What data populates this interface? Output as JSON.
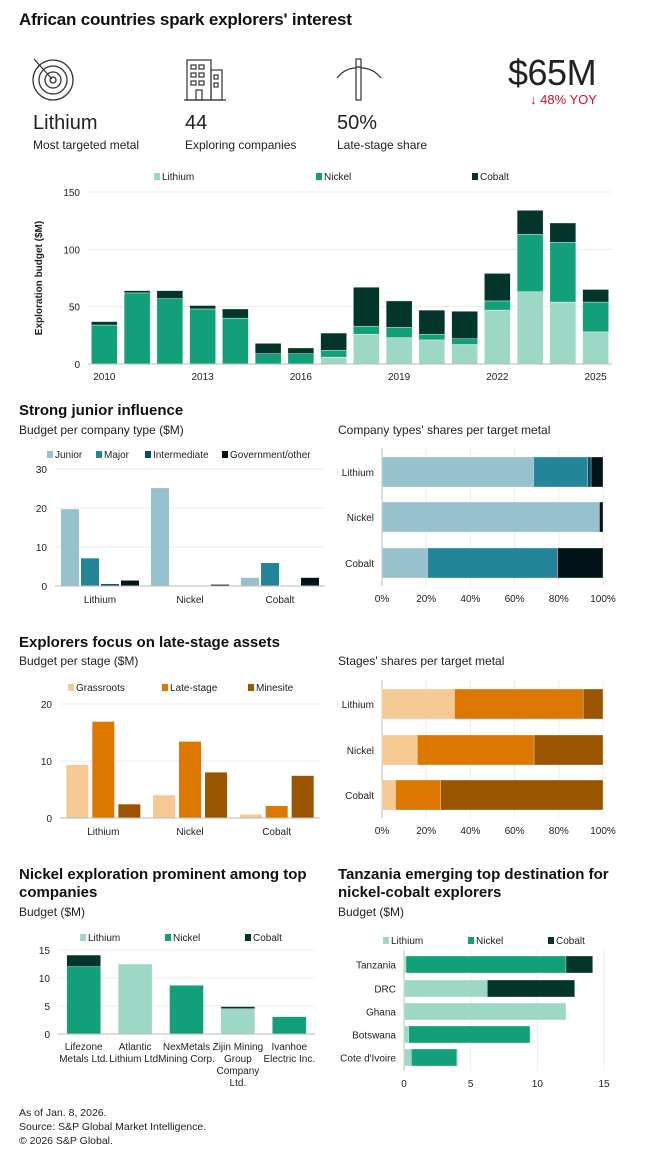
{
  "title": "African countries spark explorers' interest",
  "kpis": [
    {
      "icon": "target-icon",
      "value": "Lithium",
      "label": "Most targeted metal"
    },
    {
      "icon": "building-icon",
      "value": "44",
      "label": "Exploring companies"
    },
    {
      "icon": "pickaxe-icon",
      "value": "50%",
      "label": "Late-stage share"
    }
  ],
  "headline": {
    "value": "$65M",
    "change": "↓ 48% YOY",
    "change_color": "#c8102e"
  },
  "colors": {
    "lithium": "#9dd7c6",
    "nickel": "#12a07a",
    "cobalt": "#04352a",
    "junior": "#96c1cd",
    "major": "#24849a",
    "intermediate": "#0b4f5c",
    "government": "#031419",
    "grassroots": "#f6c993",
    "late_stage": "#dc7700",
    "minesite": "#9b5500"
  },
  "sections": {
    "junior": {
      "heading": "Strong junior influence",
      "left_sub": "Budget per company type ($M)",
      "right_sub": "Company types' shares per target metal"
    },
    "stage": {
      "heading": "Explorers focus on late-stage assets",
      "left_sub": "Budget per stage ($M)",
      "right_sub": "Stages' shares per target metal"
    },
    "companies": {
      "heading": "Nickel exploration prominent among top companies",
      "sub": "Budget ($M)"
    },
    "countries": {
      "heading": "Tanzania emerging top destination for nickel-cobalt explorers",
      "sub": "Budget ($M)"
    }
  },
  "chart_data": [
    {
      "id": "annual",
      "type": "bar",
      "stacked": true,
      "ylabel": "Exploration budget ($M)",
      "ylim": [
        0,
        150
      ],
      "yticks": [
        0,
        50,
        100,
        150
      ],
      "grid": true,
      "legend": "top",
      "categories": [
        "2010",
        "2011",
        "2012",
        "2013",
        "2014",
        "2015",
        "2016",
        "2017",
        "2018",
        "2019",
        "2020",
        "2021",
        "2022",
        "2023",
        "2024",
        "2025"
      ],
      "xtick_labels": [
        "2010",
        "2013",
        "2016",
        "2019",
        "2022",
        "2025"
      ],
      "series": [
        {
          "name": "Lithium",
          "color": "#9dd7c6",
          "values": [
            0,
            0,
            0,
            0,
            0,
            0,
            0,
            6,
            26,
            23,
            21,
            17,
            47,
            63,
            54,
            28
          ]
        },
        {
          "name": "Nickel",
          "color": "#12a07a",
          "values": [
            34,
            62,
            57,
            48,
            40,
            9,
            9,
            6,
            7,
            9,
            5,
            5,
            8,
            50,
            52,
            26
          ]
        },
        {
          "name": "Cobalt",
          "color": "#04352a",
          "values": [
            3,
            2,
            7,
            3,
            8,
            9,
            5,
            15,
            34,
            23,
            21,
            24,
            24,
            21,
            17,
            11
          ]
        }
      ]
    },
    {
      "id": "company_type",
      "type": "bar",
      "stacked": false,
      "ylim": [
        0,
        30
      ],
      "yticks": [
        0,
        10,
        20,
        30
      ],
      "grid": true,
      "legend": "top",
      "categories": [
        "Lithium",
        "Nickel",
        "Cobalt"
      ],
      "series": [
        {
          "name": "Junior",
          "color": "#96c1cd",
          "values": [
            19.7,
            25.1,
            2.1
          ]
        },
        {
          "name": "Major",
          "color": "#24849a",
          "values": [
            7.1,
            0,
            5.9
          ]
        },
        {
          "name": "Intermediate",
          "color": "#0b4f5c",
          "values": [
            0.5,
            0,
            0
          ]
        },
        {
          "name": "Government/other",
          "color": "#031419",
          "values": [
            1.4,
            0.35,
            2.1
          ]
        }
      ]
    },
    {
      "id": "company_type_share",
      "type": "bar",
      "orientation": "horizontal",
      "stacked": true,
      "unit": "%",
      "xlim": [
        0,
        100
      ],
      "xticks": [
        "0%",
        "20%",
        "40%",
        "60%",
        "80%",
        "100%"
      ],
      "grid": true,
      "categories": [
        "Lithium",
        "Nickel",
        "Cobalt"
      ],
      "series": [
        {
          "name": "Junior",
          "color": "#96c1cd",
          "values": [
            68.6,
            98.4,
            20.6
          ]
        },
        {
          "name": "Major",
          "color": "#24849a",
          "values": [
            24.5,
            0,
            58.9
          ]
        },
        {
          "name": "Intermediate",
          "color": "#0b4f5c",
          "values": [
            1.5,
            0,
            0
          ]
        },
        {
          "name": "Government/other",
          "color": "#031419",
          "values": [
            5.4,
            1.6,
            20.5
          ]
        }
      ]
    },
    {
      "id": "stage",
      "type": "bar",
      "stacked": false,
      "ylim": [
        0,
        20
      ],
      "yticks": [
        0,
        10,
        20
      ],
      "grid": true,
      "legend": "top",
      "categories": [
        "Lithium",
        "Nickel",
        "Cobalt"
      ],
      "series": [
        {
          "name": "Grassroots",
          "color": "#f6c993",
          "values": [
            9.3,
            4.0,
            0.6
          ]
        },
        {
          "name": "Late-stage",
          "color": "#dc7700",
          "values": [
            16.9,
            13.4,
            2.1
          ]
        },
        {
          "name": "Minesite",
          "color": "#9b5500",
          "values": [
            2.4,
            8.0,
            7.4
          ]
        }
      ]
    },
    {
      "id": "stage_share",
      "type": "bar",
      "orientation": "horizontal",
      "stacked": true,
      "unit": "%",
      "xlim": [
        0,
        100
      ],
      "xticks": [
        "0%",
        "20%",
        "40%",
        "60%",
        "80%",
        "100%"
      ],
      "grid": true,
      "categories": [
        "Lithium",
        "Nickel",
        "Cobalt"
      ],
      "series": [
        {
          "name": "Grassroots",
          "color": "#f6c993",
          "values": [
            32.8,
            16.0,
            6.1
          ]
        },
        {
          "name": "Late-stage",
          "color": "#dc7700",
          "values": [
            58.2,
            52.8,
            20.4
          ]
        },
        {
          "name": "Minesite",
          "color": "#9b5500",
          "values": [
            9.0,
            31.2,
            73.5
          ]
        }
      ]
    },
    {
      "id": "top_companies",
      "type": "bar",
      "stacked": true,
      "ylim": [
        0,
        15
      ],
      "yticks": [
        0,
        5,
        10,
        15
      ],
      "grid": true,
      "legend": "top",
      "categories": [
        "Lifezone Metals Ltd.",
        "Atlantic Lithium Ltd.",
        "NexMetals Mining Corp.",
        "Zijin Mining Group Company Ltd.",
        "Ivanhoe Electric Inc."
      ],
      "series": [
        {
          "name": "Lithium",
          "color": "#9dd7c6",
          "values": [
            0,
            12.5,
            0,
            4.5,
            0
          ]
        },
        {
          "name": "Nickel",
          "color": "#12a07a",
          "values": [
            12.0,
            0,
            8.7,
            0,
            3.1
          ]
        },
        {
          "name": "Cobalt",
          "color": "#04352a",
          "values": [
            2.1,
            0,
            0,
            0.4,
            0
          ]
        }
      ]
    },
    {
      "id": "countries",
      "type": "bar",
      "orientation": "horizontal",
      "stacked": true,
      "xlim": [
        0,
        15
      ],
      "xticks": [
        "0",
        "5",
        "10",
        "15"
      ],
      "grid": true,
      "legend": "top",
      "categories": [
        "Tanzania",
        "DRC",
        "Ghana",
        "Botswana",
        "Cote d'Ivoire"
      ],
      "series": [
        {
          "name": "Lithium",
          "color": "#9dd7c6",
          "values": [
            0.15,
            6.25,
            12.15,
            0.35,
            0.55
          ]
        },
        {
          "name": "Nickel",
          "color": "#12a07a",
          "values": [
            12.0,
            0,
            0,
            9.1,
            3.4
          ]
        },
        {
          "name": "Cobalt",
          "color": "#04352a",
          "values": [
            2.0,
            6.55,
            0,
            0,
            0.05
          ]
        }
      ]
    }
  ],
  "footer": [
    "As of Jan. 8, 2026.",
    "Source: S&P Global Market Intelligence.",
    "© 2026 S&P Global."
  ]
}
